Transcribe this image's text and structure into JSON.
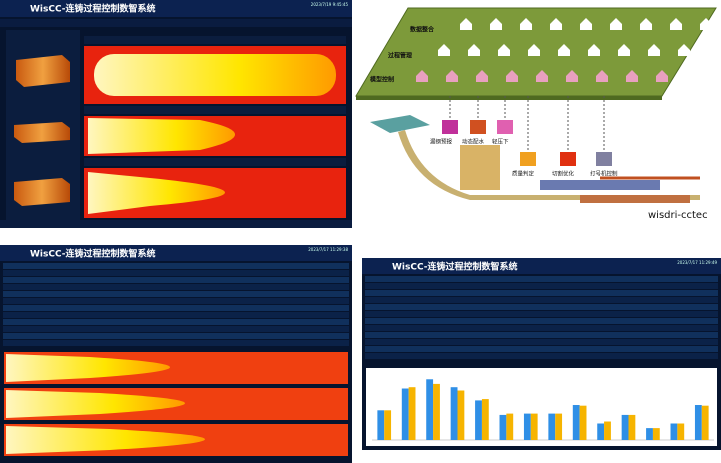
{
  "panels": [
    {
      "title": "WisCC-连铸过程控制数智系统",
      "time": "2023/7/19 9:45:45"
    },
    {
      "title": "WisCC-连铸过程控制数智系统",
      "time": "2023/7/17 11:29:38"
    },
    {
      "title": "WisCC-连铸过程控制数智系统",
      "time": "2023/7/17 11:29:49"
    }
  ],
  "diagram": {
    "layers": [
      "数据整合",
      "过程管理",
      "模型控制"
    ],
    "functions": [
      "漏钢预报",
      "动态配水",
      "轻压下",
      "质量判定",
      "切割优化",
      "打号机控制"
    ],
    "brand": "wisdri-cctec"
  },
  "chart_data": {
    "type": "bar",
    "categories": [
      null,
      null,
      null,
      null,
      null,
      null,
      null,
      null,
      null,
      null,
      null,
      null,
      null,
      null
    ],
    "series": [
      {
        "color": "#2f8fe6",
        "values": [
          45,
          78,
          92,
          80,
          60,
          38,
          40,
          40,
          53,
          25,
          38,
          18,
          25,
          53
        ]
      },
      {
        "color": "#f6b400",
        "values": [
          45,
          80,
          85,
          75,
          62,
          40,
          40,
          40,
          52,
          28,
          38,
          18,
          25,
          52
        ]
      }
    ],
    "ylim": [
      0,
      100
    ]
  }
}
